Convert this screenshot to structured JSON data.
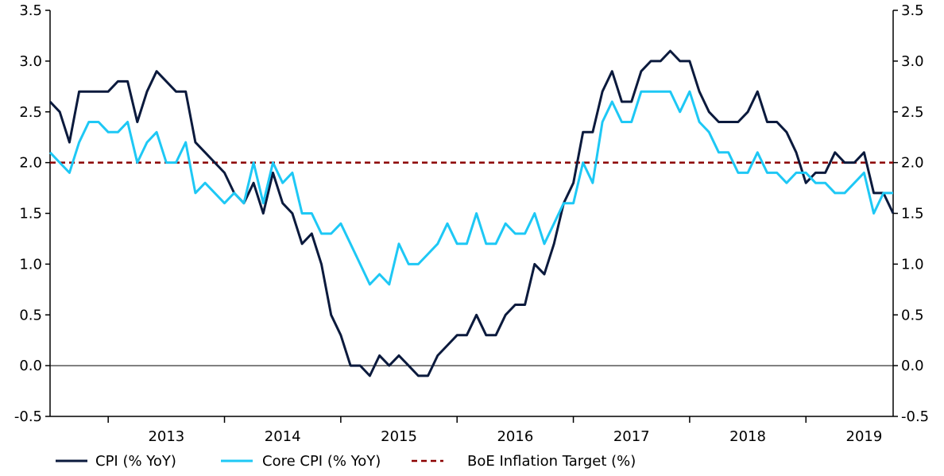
{
  "chart_data": {
    "type": "line",
    "title": "",
    "xlabel": "",
    "ylabel": "",
    "ylim": [
      -0.5,
      3.5
    ],
    "yticks": [
      "-0.5",
      "0.0",
      "0.5",
      "1.0",
      "1.5",
      "2.0",
      "2.5",
      "3.0",
      "3.5"
    ],
    "y_axis_right": true,
    "x_tick_labels": [
      "2013",
      "2014",
      "2015",
      "2016",
      "2017",
      "2018",
      "2019"
    ],
    "x_start": "2012-07",
    "x_end": "2019-10",
    "grid": false,
    "legend_position": "bottom",
    "series": [
      {
        "name": "CPI (% YoY)",
        "color": "#0b1a3d",
        "style": "solid",
        "x": [
          "2012-07",
          "2012-08",
          "2012-09",
          "2012-10",
          "2012-11",
          "2012-12",
          "2013-01",
          "2013-02",
          "2013-03",
          "2013-04",
          "2013-05",
          "2013-06",
          "2013-07",
          "2013-08",
          "2013-09",
          "2013-10",
          "2013-11",
          "2013-12",
          "2014-01",
          "2014-02",
          "2014-03",
          "2014-04",
          "2014-05",
          "2014-06",
          "2014-07",
          "2014-08",
          "2014-09",
          "2014-10",
          "2014-11",
          "2014-12",
          "2015-01",
          "2015-02",
          "2015-03",
          "2015-04",
          "2015-05",
          "2015-06",
          "2015-07",
          "2015-08",
          "2015-09",
          "2015-10",
          "2015-11",
          "2015-12",
          "2016-01",
          "2016-02",
          "2016-03",
          "2016-04",
          "2016-05",
          "2016-06",
          "2016-07",
          "2016-08",
          "2016-09",
          "2016-10",
          "2016-11",
          "2016-12",
          "2017-01",
          "2017-02",
          "2017-03",
          "2017-04",
          "2017-05",
          "2017-06",
          "2017-07",
          "2017-08",
          "2017-09",
          "2017-10",
          "2017-11",
          "2017-12",
          "2018-01",
          "2018-02",
          "2018-03",
          "2018-04",
          "2018-05",
          "2018-06",
          "2018-07",
          "2018-08",
          "2018-09",
          "2018-10",
          "2018-11",
          "2018-12",
          "2019-01",
          "2019-02",
          "2019-03",
          "2019-04",
          "2019-05",
          "2019-06",
          "2019-07",
          "2019-08",
          "2019-09",
          "2019-10"
        ],
        "values": [
          2.6,
          2.5,
          2.2,
          2.7,
          2.7,
          2.7,
          2.7,
          2.8,
          2.8,
          2.4,
          2.7,
          2.9,
          2.8,
          2.7,
          2.7,
          2.2,
          2.1,
          2.0,
          1.9,
          1.7,
          1.6,
          1.8,
          1.5,
          1.9,
          1.6,
          1.5,
          1.2,
          1.3,
          1.0,
          0.5,
          0.3,
          0.0,
          0.0,
          -0.1,
          0.1,
          0.0,
          0.1,
          0.0,
          -0.1,
          -0.1,
          0.1,
          0.2,
          0.3,
          0.3,
          0.5,
          0.3,
          0.3,
          0.5,
          0.6,
          0.6,
          1.0,
          0.9,
          1.2,
          1.6,
          1.8,
          2.3,
          2.3,
          2.7,
          2.9,
          2.6,
          2.6,
          2.9,
          3.0,
          3.0,
          3.1,
          3.0,
          3.0,
          2.7,
          2.5,
          2.4,
          2.4,
          2.4,
          2.5,
          2.7,
          2.4,
          2.4,
          2.3,
          2.1,
          1.8,
          1.9,
          1.9,
          2.1,
          2.0,
          2.0,
          2.1,
          1.7,
          1.7,
          1.5
        ]
      },
      {
        "name": "Core CPI (% YoY)",
        "color": "#1ec8f5",
        "style": "solid",
        "x": [
          "2012-07",
          "2012-08",
          "2012-09",
          "2012-10",
          "2012-11",
          "2012-12",
          "2013-01",
          "2013-02",
          "2013-03",
          "2013-04",
          "2013-05",
          "2013-06",
          "2013-07",
          "2013-08",
          "2013-09",
          "2013-10",
          "2013-11",
          "2013-12",
          "2014-01",
          "2014-02",
          "2014-03",
          "2014-04",
          "2014-05",
          "2014-06",
          "2014-07",
          "2014-08",
          "2014-09",
          "2014-10",
          "2014-11",
          "2014-12",
          "2015-01",
          "2015-02",
          "2015-03",
          "2015-04",
          "2015-05",
          "2015-06",
          "2015-07",
          "2015-08",
          "2015-09",
          "2015-10",
          "2015-11",
          "2015-12",
          "2016-01",
          "2016-02",
          "2016-03",
          "2016-04",
          "2016-05",
          "2016-06",
          "2016-07",
          "2016-08",
          "2016-09",
          "2016-10",
          "2016-11",
          "2016-12",
          "2017-01",
          "2017-02",
          "2017-03",
          "2017-04",
          "2017-05",
          "2017-06",
          "2017-07",
          "2017-08",
          "2017-09",
          "2017-10",
          "2017-11",
          "2017-12",
          "2018-01",
          "2018-02",
          "2018-03",
          "2018-04",
          "2018-05",
          "2018-06",
          "2018-07",
          "2018-08",
          "2018-09",
          "2018-10",
          "2018-11",
          "2018-12",
          "2019-01",
          "2019-02",
          "2019-03",
          "2019-04",
          "2019-05",
          "2019-06",
          "2019-07",
          "2019-08",
          "2019-09",
          "2019-10"
        ],
        "values": [
          2.1,
          2.0,
          1.9,
          2.2,
          2.4,
          2.4,
          2.3,
          2.3,
          2.4,
          2.0,
          2.2,
          2.3,
          2.0,
          2.0,
          2.2,
          1.7,
          1.8,
          1.7,
          1.6,
          1.7,
          1.6,
          2.0,
          1.6,
          2.0,
          1.8,
          1.9,
          1.5,
          1.5,
          1.3,
          1.3,
          1.4,
          1.2,
          1.0,
          0.8,
          0.9,
          0.8,
          1.2,
          1.0,
          1.0,
          1.1,
          1.2,
          1.4,
          1.2,
          1.2,
          1.5,
          1.2,
          1.2,
          1.4,
          1.3,
          1.3,
          1.5,
          1.2,
          1.4,
          1.6,
          1.6,
          2.0,
          1.8,
          2.4,
          2.6,
          2.4,
          2.4,
          2.7,
          2.7,
          2.7,
          2.7,
          2.5,
          2.7,
          2.4,
          2.3,
          2.1,
          2.1,
          1.9,
          1.9,
          2.1,
          1.9,
          1.9,
          1.8,
          1.9,
          1.9,
          1.8,
          1.8,
          1.7,
          1.7,
          1.8,
          1.9,
          1.5,
          1.7,
          1.7
        ]
      },
      {
        "name": "BoE Inflation Target (%)",
        "color": "#8b0000",
        "style": "dashed",
        "x": [
          "2012-07",
          "2019-10"
        ],
        "values": [
          2.0,
          2.0
        ]
      }
    ]
  }
}
